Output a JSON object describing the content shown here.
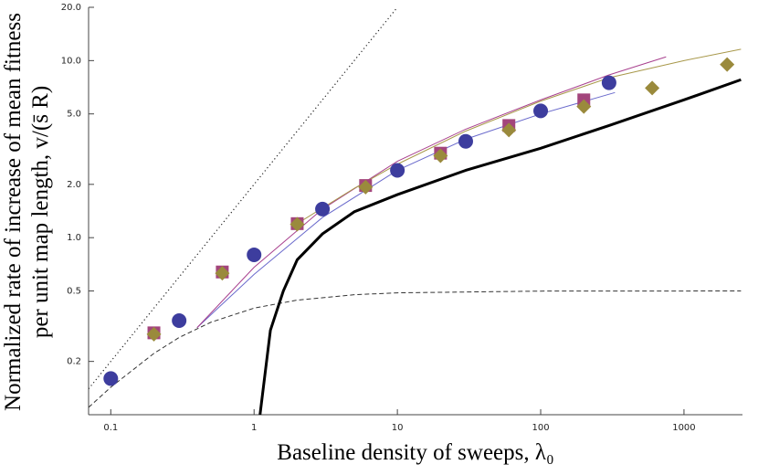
{
  "chart_data": {
    "type": "scatter",
    "xlabel": "Baseline density of sweeps, λ₀",
    "ylabel": [
      "Normalized rate of increase of mean fitness",
      "per unit map length, v/(s̄ R)"
    ],
    "xscale": "log",
    "yscale": "log",
    "xlim": [
      0.07,
      2560
    ],
    "ylim": [
      0.1,
      20
    ],
    "xticks": [
      0.1,
      1,
      10,
      100,
      1000
    ],
    "yticks": [
      0.2,
      0.5,
      {
        "value": 1,
        "label": "1.0"
      },
      {
        "value": 2,
        "label": "2.0"
      },
      {
        "value": 5,
        "label": "5.0"
      },
      {
        "value": 10,
        "label": "10.0"
      },
      {
        "value": 20,
        "label": "20.0"
      }
    ],
    "series": [
      {
        "mode": "line",
        "style": "dotted",
        "color": "#222222",
        "x": [
          0.07,
          10
        ],
        "values": [
          0.14,
          20
        ]
      },
      {
        "mode": "line",
        "style": "dashed",
        "color": "#333333",
        "x": [
          0.07,
          0.1,
          0.2,
          0.3,
          0.5,
          1,
          2,
          5,
          10,
          100,
          2500
        ],
        "values": [
          0.11,
          0.143,
          0.222,
          0.273,
          0.333,
          0.4,
          0.444,
          0.476,
          0.488,
          0.499,
          0.5
        ]
      },
      {
        "mode": "line",
        "style": "thick",
        "color": "#000000",
        "x": [
          1.1,
          1.3,
          1.6,
          2,
          3,
          5,
          10,
          30,
          100,
          300,
          1000,
          2500
        ],
        "values": [
          0.1,
          0.3,
          0.5,
          0.75,
          1.05,
          1.4,
          1.75,
          2.4,
          3.2,
          4.3,
          6.0,
          7.8
        ]
      },
      {
        "mode": "line",
        "style": "thin",
        "color": "#6a6acc",
        "x": [
          0.4,
          1,
          3,
          10,
          30,
          100,
          330
        ],
        "values": [
          0.31,
          0.62,
          1.3,
          2.4,
          3.6,
          5.0,
          6.6
        ]
      },
      {
        "mode": "line",
        "style": "thin",
        "color": "#a8408e",
        "x": [
          0.4,
          1,
          3,
          10,
          30,
          100,
          300,
          750
        ],
        "values": [
          0.31,
          0.68,
          1.45,
          2.7,
          4.1,
          6.0,
          8.3,
          10.5
        ]
      },
      {
        "mode": "line",
        "style": "thin",
        "color": "#a8984a",
        "x": [
          2,
          5,
          10,
          30,
          100,
          300,
          1000,
          2500
        ],
        "values": [
          1.2,
          1.9,
          2.6,
          4.0,
          5.9,
          8.0,
          10.0,
          11.6
        ]
      },
      {
        "mode": "markers",
        "marker": "circle",
        "color": "#3d3d9e",
        "x": [
          0.1,
          0.3,
          1,
          3,
          10,
          30,
          100,
          300
        ],
        "values": [
          0.16,
          0.34,
          0.8,
          1.45,
          2.4,
          3.5,
          5.2,
          7.5
        ]
      },
      {
        "mode": "markers",
        "marker": "square",
        "color": "#a3457c",
        "x": [
          0.2,
          0.6,
          2,
          6,
          20,
          60,
          200
        ],
        "values": [
          0.29,
          0.64,
          1.2,
          1.97,
          3.0,
          4.3,
          6.0
        ]
      },
      {
        "mode": "markers",
        "marker": "diamond",
        "color": "#9a8a3c",
        "x": [
          0.2,
          0.6,
          2,
          6,
          20,
          60,
          200,
          600,
          2000
        ],
        "values": [
          0.285,
          0.63,
          1.19,
          1.93,
          2.9,
          4.05,
          5.5,
          7.0,
          9.5
        ]
      }
    ]
  }
}
